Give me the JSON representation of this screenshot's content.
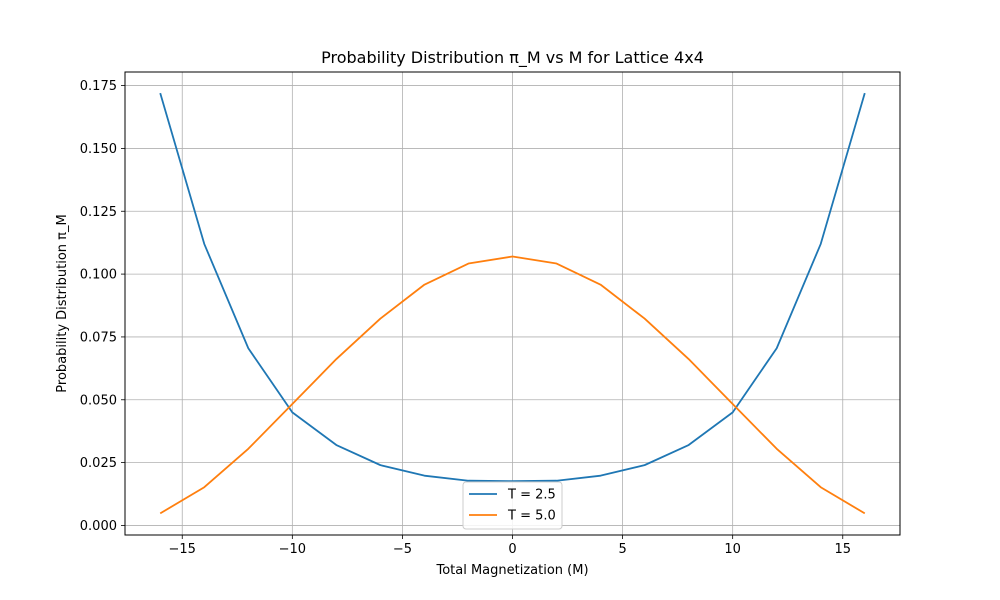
{
  "chart_data": {
    "type": "line",
    "title": "Probability Distribution π_M vs M for Lattice 4x4",
    "xlabel": "Total Magnetization (M)",
    "ylabel": "Probability Distribution π_M",
    "xlim": [
      -17.6,
      17.6
    ],
    "ylim": [
      -0.0038,
      0.1804
    ],
    "xticks": [
      -15,
      -10,
      -5,
      0,
      5,
      10,
      15
    ],
    "xtick_labels": [
      "−15",
      "−10",
      "−5",
      "0",
      "5",
      "10",
      "15"
    ],
    "yticks": [
      0.0,
      0.025,
      0.05,
      0.075,
      0.1,
      0.125,
      0.15,
      0.175
    ],
    "ytick_labels": [
      "0.000",
      "0.025",
      "0.050",
      "0.075",
      "0.100",
      "0.125",
      "0.150",
      "0.175"
    ],
    "grid": true,
    "legend_position": "bottom-center",
    "x": [
      -16,
      -14,
      -12,
      -10,
      -8,
      -6,
      -4,
      -2,
      0,
      2,
      4,
      6,
      8,
      10,
      12,
      14,
      16
    ],
    "series": [
      {
        "name": "T = 2.5",
        "color": "#1f77b4",
        "values": [
          0.172,
          0.112,
          0.0705,
          0.045,
          0.032,
          0.024,
          0.0198,
          0.0178,
          0.0176,
          0.0178,
          0.0198,
          0.024,
          0.032,
          0.045,
          0.0705,
          0.112,
          0.172
        ]
      },
      {
        "name": "T = 5.0",
        "color": "#ff7f0e",
        "values": [
          0.0048,
          0.0152,
          0.0305,
          0.0483,
          0.0662,
          0.0823,
          0.0958,
          0.1042,
          0.107,
          0.1042,
          0.0958,
          0.0823,
          0.0662,
          0.0483,
          0.0305,
          0.0152,
          0.0048
        ]
      }
    ]
  }
}
